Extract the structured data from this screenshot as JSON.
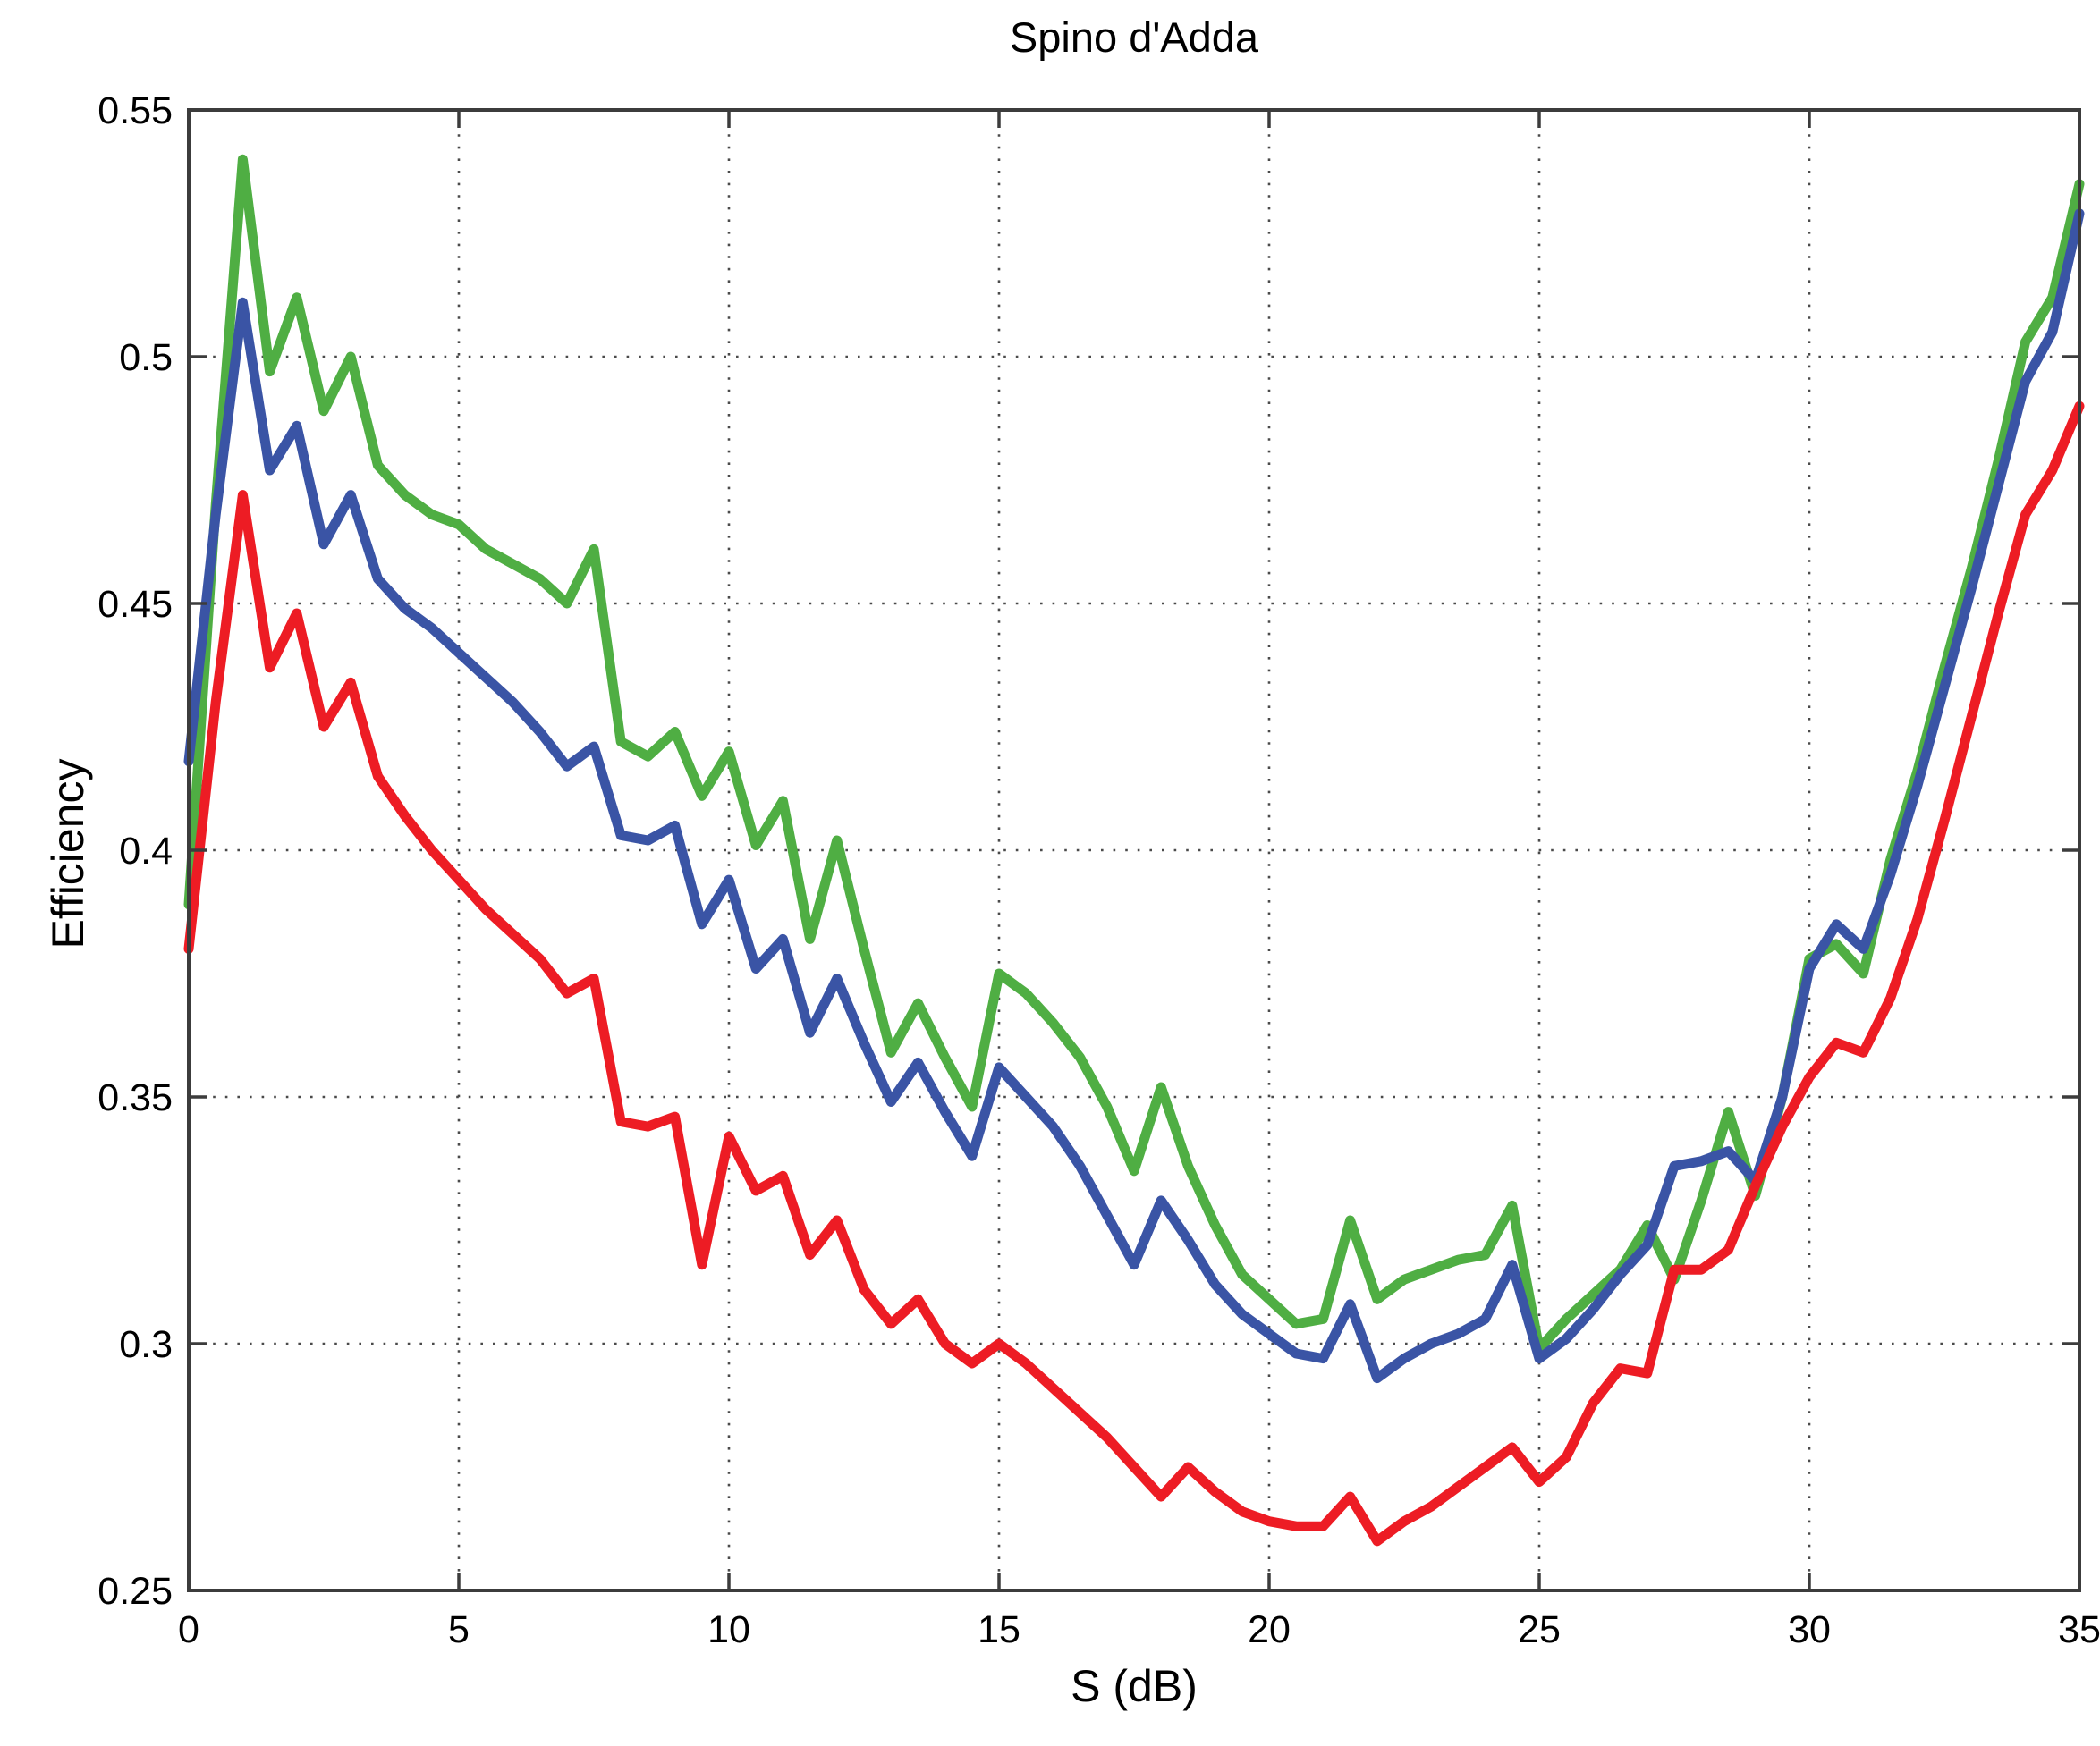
{
  "title": "Spino d'Adda",
  "chart_data": {
    "type": "line",
    "title": "Spino d'Adda",
    "xlabel": "S (dB)",
    "ylabel": "Efficiency",
    "xlim": [
      0,
      35
    ],
    "ylim": [
      0.25,
      0.55
    ],
    "xticks": [
      0,
      5,
      10,
      15,
      20,
      25,
      30,
      35
    ],
    "xtick_labels": [
      "0",
      "5",
      "10",
      "15",
      "20",
      "25",
      "30",
      "35"
    ],
    "yticks": [
      0.25,
      0.3,
      0.35,
      0.4,
      0.45,
      0.5,
      0.55
    ],
    "ytick_labels": [
      "0.25",
      "0.3",
      "0.35",
      "0.4",
      "0.45",
      "0.5",
      "0.55"
    ],
    "grid": true,
    "grid_style": "dotted",
    "legend": "none",
    "background": "#ffffff",
    "x": [
      0,
      0.5,
      1,
      1.5,
      2,
      2.5,
      3,
      3.5,
      4,
      4.5,
      5,
      5.5,
      6,
      6.5,
      7,
      7.5,
      8,
      8.5,
      9,
      9.5,
      10,
      10.5,
      11,
      11.5,
      12,
      12.5,
      13,
      13.5,
      14,
      14.5,
      15,
      15.5,
      16,
      16.5,
      17,
      17.5,
      18,
      18.5,
      19,
      19.5,
      20,
      20.5,
      21,
      21.5,
      22,
      22.5,
      23,
      23.5,
      24,
      24.5,
      25,
      25.5,
      26,
      26.5,
      27,
      27.5,
      28,
      28.5,
      29,
      29.5,
      30,
      30.5,
      31,
      31.5,
      32,
      32.5,
      33,
      33.5,
      34,
      34.5,
      35
    ],
    "series": [
      {
        "name": "green-curve",
        "color": "#4fae43",
        "values": [
          0.389,
          0.47,
          0.54,
          0.497,
          0.512,
          0.489,
          0.5,
          0.478,
          0.472,
          0.468,
          0.466,
          0.461,
          0.458,
          0.455,
          0.45,
          0.461,
          0.422,
          0.419,
          0.424,
          0.411,
          0.42,
          0.401,
          0.41,
          0.382,
          0.402,
          0.38,
          0.359,
          0.369,
          0.358,
          0.348,
          0.375,
          0.371,
          0.365,
          0.358,
          0.348,
          0.335,
          0.352,
          0.336,
          0.324,
          0.314,
          0.309,
          0.304,
          0.305,
          0.325,
          0.309,
          0.313,
          0.315,
          0.317,
          0.318,
          0.328,
          0.299,
          0.305,
          0.31,
          0.315,
          0.324,
          0.313,
          0.329,
          0.347,
          0.33,
          0.35,
          0.378,
          0.381,
          0.375,
          0.398,
          0.416,
          0.437,
          0.457,
          0.479,
          0.503,
          0.512,
          0.535
        ]
      },
      {
        "name": "blue-curve",
        "color": "#3a54a5",
        "values": [
          0.418,
          0.468,
          0.511,
          0.477,
          0.486,
          0.462,
          0.472,
          0.455,
          0.449,
          0.445,
          0.44,
          0.435,
          0.43,
          0.424,
          0.417,
          0.421,
          0.403,
          0.402,
          0.405,
          0.385,
          0.394,
          0.376,
          0.382,
          0.363,
          0.374,
          0.361,
          0.349,
          0.357,
          0.347,
          0.338,
          0.356,
          0.35,
          0.344,
          0.336,
          0.326,
          0.316,
          0.329,
          0.321,
          0.312,
          0.306,
          0.302,
          0.298,
          0.297,
          0.308,
          0.293,
          0.297,
          0.3,
          0.302,
          0.305,
          0.316,
          0.297,
          0.301,
          0.307,
          0.314,
          0.32,
          0.336,
          0.337,
          0.339,
          0.333,
          0.35,
          0.376,
          0.385,
          0.38,
          0.395,
          0.413,
          0.433,
          0.453,
          0.474,
          0.495,
          0.505,
          0.529
        ]
      },
      {
        "name": "red-curve",
        "color": "#ed1c24",
        "values": [
          0.38,
          0.43,
          0.472,
          0.437,
          0.448,
          0.425,
          0.434,
          0.415,
          0.407,
          0.4,
          0.394,
          0.388,
          0.383,
          0.378,
          0.371,
          0.374,
          0.345,
          0.344,
          0.346,
          0.316,
          0.342,
          0.331,
          0.334,
          0.318,
          0.325,
          0.311,
          0.304,
          0.309,
          0.3,
          0.296,
          0.3,
          0.296,
          0.291,
          0.286,
          0.281,
          0.275,
          0.269,
          0.275,
          0.27,
          0.266,
          0.264,
          0.263,
          0.263,
          0.269,
          0.26,
          0.264,
          0.267,
          0.271,
          0.275,
          0.279,
          0.272,
          0.277,
          0.288,
          0.295,
          0.294,
          0.315,
          0.315,
          0.319,
          0.332,
          0.344,
          0.354,
          0.361,
          0.359,
          0.37,
          0.386,
          0.406,
          0.427,
          0.448,
          0.468,
          0.477,
          0.49
        ]
      }
    ]
  }
}
